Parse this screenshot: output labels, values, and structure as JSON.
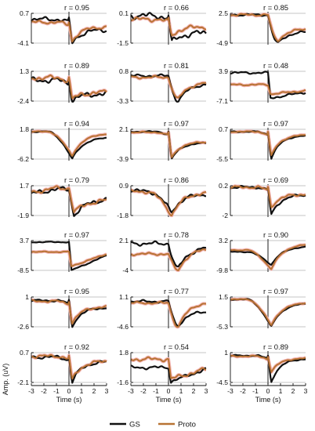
{
  "colors": {
    "gs": "#111111",
    "proto": "#b87333",
    "proto_shade": "#f4b7b7",
    "grid": "#d9d9d9",
    "zero": "#444444"
  },
  "legend": {
    "gs": "GS",
    "proto": "Proto",
    "placement": "bottom-center"
  },
  "xlabel": "Time (s)",
  "ylabel": "Amp. (uV)",
  "chart_data": {
    "type": "line",
    "layout": {
      "rows": 7,
      "cols": 3
    },
    "xlim": [
      -3,
      3
    ],
    "xticks": [
      "-3",
      "-2",
      "-1",
      "0",
      "1",
      "2",
      "3"
    ],
    "grid": true,
    "series_names": [
      "GS",
      "Proto"
    ],
    "panels": [
      {
        "r_label": "r = 0.95",
        "ylim": [
          -4.1,
          0.7
        ],
        "yticks": [
          "0.7",
          "-4.1"
        ],
        "shape": "dip_sharp",
        "gs": {
          "pre": 0.8,
          "trough": -4.1,
          "recover": 0.45,
          "wiggle": 0.2
        },
        "proto": {
          "pre": 0.7,
          "trough": -3.8,
          "recover": 0.55,
          "wiggle": 0.15
        }
      },
      {
        "r_label": "r = 0.66",
        "ylim": [
          -1.5,
          0.1
        ],
        "yticks": [
          "0.1",
          "-1.5"
        ],
        "shape": "dip_sharp",
        "gs": {
          "pre": 0.92,
          "trough": -1.5,
          "recover": 0.35,
          "wiggle": 0.28
        },
        "proto": {
          "pre": 0.8,
          "trough": -1.1,
          "recover": 0.55,
          "wiggle": 0.2
        }
      },
      {
        "r_label": "r = 0.85",
        "ylim": [
          -4.9,
          2.5
        ],
        "yticks": [
          "2.5",
          "-4.9"
        ],
        "shape": "dip_late",
        "gs": {
          "pre": 0.95,
          "trough": -4.9,
          "recover": 0.4,
          "wiggle": 0.1
        },
        "proto": {
          "pre": 0.95,
          "trough": -4.3,
          "recover": 0.5,
          "wiggle": 0.1
        }
      },
      {
        "r_label": "r = 0.89",
        "ylim": [
          -2.4,
          1.3
        ],
        "yticks": [
          "1.3",
          "-2.4"
        ],
        "shape": "dip_sharp",
        "gs": {
          "pre": 0.7,
          "trough": -2.4,
          "recover": 0.25,
          "wiggle": 0.25
        },
        "proto": {
          "pre": 0.78,
          "trough": -2.2,
          "recover": 0.3,
          "wiggle": 0.22
        }
      },
      {
        "r_label": "r = 0.81",
        "ylim": [
          -3.3,
          0.8
        ],
        "yticks": [
          "0.8",
          "-3.3"
        ],
        "shape": "dip_late",
        "gs": {
          "pre": 0.85,
          "trough": -3.3,
          "recover": 0.6,
          "wiggle": 0.12
        },
        "proto": {
          "pre": 0.8,
          "trough": -3.0,
          "recover": 0.65,
          "wiggle": 0.12
        }
      },
      {
        "r_label": "r = 0.48",
        "ylim": [
          -7.1,
          3.9
        ],
        "yticks": [
          "3.9",
          "-7.1"
        ],
        "shape": "step_down",
        "gs": {
          "pre": 0.95,
          "trough": -6.0,
          "recover": 0.3,
          "wiggle": 0.1
        },
        "proto": {
          "pre": 0.55,
          "trough": -4.5,
          "recover": 0.35,
          "wiggle": 0.08
        }
      },
      {
        "r_label": "r = 0.94",
        "ylim": [
          -6.2,
          1.8
        ],
        "yticks": [
          "1.8",
          "-6.2"
        ],
        "shape": "dip_wide",
        "gs": {
          "pre": 0.92,
          "trough": -6.2,
          "recover": 0.75,
          "wiggle": 0.05
        },
        "proto": {
          "pre": 0.92,
          "trough": -5.4,
          "recover": 0.88,
          "wiggle": 0.05
        }
      },
      {
        "r_label": "r = 0.97",
        "ylim": [
          -3.9,
          2.1
        ],
        "yticks": [
          "2.1",
          "-3.9"
        ],
        "shape": "dip_sharp",
        "gs": {
          "pre": 0.92,
          "trough": -3.9,
          "recover": 0.55,
          "wiggle": 0.06
        },
        "proto": {
          "pre": 0.9,
          "trough": -3.7,
          "recover": 0.58,
          "wiggle": 0.06
        }
      },
      {
        "r_label": "r = 0.97",
        "ylim": [
          -5.5,
          0.7
        ],
        "yticks": [
          "0.7",
          "-5.5"
        ],
        "shape": "dip_sharp",
        "gs": {
          "pre": 0.92,
          "trough": -5.5,
          "recover": 0.8,
          "wiggle": 0.05
        },
        "proto": {
          "pre": 0.92,
          "trough": -4.9,
          "recover": 0.82,
          "wiggle": 0.05
        }
      },
      {
        "r_label": "r = 0.79",
        "ylim": [
          -1.9,
          1.7
        ],
        "yticks": [
          "1.7",
          "-1.9"
        ],
        "shape": "bump_dip",
        "gs": {
          "pre": 0.88,
          "trough": -1.9,
          "recover": 0.6,
          "wiggle": 0.22
        },
        "proto": {
          "pre": 0.92,
          "trough": -1.5,
          "recover": 0.55,
          "wiggle": 0.18
        }
      },
      {
        "r_label": "r = 0.86",
        "ylim": [
          -1.8,
          0.9
        ],
        "yticks": [
          "0.9",
          "-1.8"
        ],
        "shape": "dip_wide",
        "gs": {
          "pre": 0.82,
          "trough": -1.5,
          "recover": 0.75,
          "wiggle": 0.18
        },
        "proto": {
          "pre": 0.8,
          "trough": -1.8,
          "recover": 0.8,
          "wiggle": 0.15
        }
      },
      {
        "r_label": "r = 0.69",
        "ylim": [
          -2,
          0.2
        ],
        "yticks": [
          "0.2",
          "-2"
        ],
        "shape": "dip_sharp",
        "gs": {
          "pre": 0.95,
          "trough": -2.0,
          "recover": 0.7,
          "wiggle": 0.12
        },
        "proto": {
          "pre": 0.95,
          "trough": -1.4,
          "recover": 0.72,
          "wiggle": 0.12
        }
      },
      {
        "r_label": "r = 0.97",
        "ylim": [
          -8.5,
          3.7
        ],
        "yticks": [
          "3.7",
          "-8.5"
        ],
        "shape": "step_down",
        "gs": {
          "pre": 0.95,
          "trough": -8.5,
          "recover": 0.5,
          "wiggle": 0.05
        },
        "proto": {
          "pre": 0.62,
          "trough": -6.8,
          "recover": 0.55,
          "wiggle": 0.05
        }
      },
      {
        "r_label": "r = 0.78",
        "ylim": [
          -4,
          2.1
        ],
        "yticks": [
          "2.1",
          "-4"
        ],
        "shape": "dip_late",
        "gs": {
          "pre": 0.9,
          "trough": -3.6,
          "recover": 0.8,
          "wiggle": 0.18
        },
        "proto": {
          "pre": 0.55,
          "trough": -4.0,
          "recover": 0.75,
          "wiggle": 0.12
        }
      },
      {
        "r_label": "r = 0.90",
        "ylim": [
          -9.8,
          3.2
        ],
        "yticks": [
          "3.2",
          "-9.8"
        ],
        "shape": "dip_wide",
        "gs": {
          "pre": 0.62,
          "trough": -7.5,
          "recover": 0.82,
          "wiggle": 0.04
        },
        "proto": {
          "pre": 0.68,
          "trough": -9.5,
          "recover": 0.9,
          "wiggle": 0.04
        }
      },
      {
        "r_label": "r = 0.95",
        "ylim": [
          -2.6,
          1
        ],
        "yticks": [
          "1",
          "-2.6"
        ],
        "shape": "dip_sharp",
        "gs": {
          "pre": 0.88,
          "trough": -2.6,
          "recover": 0.65,
          "wiggle": 0.1
        },
        "proto": {
          "pre": 0.86,
          "trough": -2.2,
          "recover": 0.68,
          "wiggle": 0.1
        }
      },
      {
        "r_label": "r = 0.77",
        "ylim": [
          -4.6,
          1.1
        ],
        "yticks": [
          "1.1",
          "-4.6"
        ],
        "shape": "dip_late",
        "gs": {
          "pre": 0.85,
          "trough": -4.4,
          "recover": 0.55,
          "wiggle": 0.12
        },
        "proto": {
          "pre": 0.8,
          "trough": -4.6,
          "recover": 0.85,
          "wiggle": 0.1
        }
      },
      {
        "r_label": "r = 0.97",
        "ylim": [
          -5.3,
          1.5
        ],
        "yticks": [
          "1.5",
          "-5.3"
        ],
        "shape": "dip_wide",
        "gs": {
          "pre": 0.92,
          "trough": -5.3,
          "recover": 0.82,
          "wiggle": 0.04
        },
        "proto": {
          "pre": 0.92,
          "trough": -5.0,
          "recover": 0.84,
          "wiggle": 0.04
        }
      },
      {
        "r_label": "r = 0.92",
        "ylim": [
          -2.1,
          0.7
        ],
        "yticks": [
          "0.7",
          "-2.1"
        ],
        "shape": "dip_sharp",
        "gs": {
          "pre": 0.85,
          "trough": -2.1,
          "recover": 0.7,
          "wiggle": 0.15
        },
        "proto": {
          "pre": 0.88,
          "trough": -1.9,
          "recover": 0.72,
          "wiggle": 0.15
        }
      },
      {
        "r_label": "r = 0.54",
        "ylim": [
          -1.6,
          1.8
        ],
        "yticks": [
          "1.8",
          "-1.6"
        ],
        "shape": "step_down",
        "gs": {
          "pre": 0.5,
          "trough": -1.5,
          "recover": 0.45,
          "wiggle": 0.15
        },
        "proto": {
          "pre": 0.78,
          "trough": -1.2,
          "recover": 0.45,
          "wiggle": 0.18
        }
      },
      {
        "r_label": "r = 0.89",
        "ylim": [
          -4.5,
          1
        ],
        "yticks": [
          "1",
          "-4.5"
        ],
        "shape": "dip_sharp",
        "gs": {
          "pre": 0.9,
          "trough": -4.5,
          "recover": 0.8,
          "wiggle": 0.06
        },
        "proto": {
          "pre": 0.88,
          "trough": -2.6,
          "recover": 0.82,
          "wiggle": 0.06
        }
      }
    ]
  }
}
